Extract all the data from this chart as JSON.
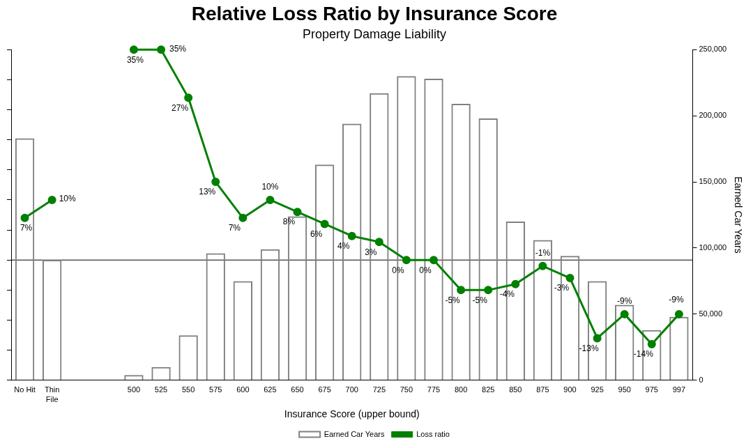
{
  "chart_data": {
    "type": "bar",
    "title": "Relative Loss Ratio by Insurance Score",
    "subtitle": "Property Damage Liability",
    "xlabel": "Insurance Score (upper bound)",
    "y2label": "Earned Car Years",
    "categories": [
      "No Hit",
      "Thin File",
      null,
      null,
      "500",
      "525",
      "550",
      "575",
      "600",
      "625",
      "650",
      "675",
      "700",
      "725",
      "750",
      "775",
      "800",
      "825",
      "850",
      "875",
      "900",
      "925",
      "950",
      "975",
      "997"
    ],
    "series": [
      {
        "name": "Earned Car Years",
        "axis": "y2",
        "color": "#808080",
        "values": [
          183000,
          91000,
          null,
          null,
          4000,
          10000,
          34000,
          96000,
          75000,
          99000,
          124000,
          163000,
          194000,
          217000,
          230000,
          228000,
          209000,
          198000,
          120000,
          106000,
          94000,
          75000,
          57000,
          38000,
          48000
        ]
      },
      {
        "name": "Loss ratio",
        "type": "line",
        "axis": "y",
        "color": "#008000",
        "values": [
          7,
          10,
          null,
          null,
          35,
          35,
          27,
          13,
          7,
          10,
          8,
          6,
          4,
          3,
          0,
          0,
          -5,
          -5,
          -4,
          -1,
          -3,
          -13,
          -9,
          -14,
          -9
        ],
        "value_labels": [
          "7%",
          "10%",
          null,
          null,
          "35%",
          "35%",
          "27%",
          "13%",
          "7%",
          "10%",
          "8%",
          "6%",
          "4%",
          "3%",
          "0%",
          "0%",
          "-5%",
          "-5%",
          "-4%",
          "-1%",
          "-3%",
          "-13%",
          "-9%",
          "-14%",
          "-9%"
        ]
      }
    ],
    "ylim": [
      -20,
      35
    ],
    "yticks": [
      {
        "value": -20,
        "label": null
      },
      {
        "value": -15,
        "label": null
      },
      {
        "value": -10,
        "label": null
      },
      {
        "value": -5,
        "label": null
      },
      {
        "value": 0,
        "label": null
      },
      {
        "value": 5,
        "label": null
      },
      {
        "value": 10,
        "label": null
      },
      {
        "value": 15,
        "label": null
      },
      {
        "value": 20,
        "label": null
      },
      {
        "value": 25,
        "label": null
      },
      {
        "value": 30,
        "label": null
      },
      {
        "value": 35,
        "label": null
      }
    ],
    "y2lim": [
      0,
      250000
    ],
    "y2ticks": [
      {
        "value": 0,
        "label": "0"
      },
      {
        "value": 50000,
        "label": "50,000"
      },
      {
        "value": 100000,
        "label": "100,000"
      },
      {
        "value": 150000,
        "label": "150,000"
      },
      {
        "value": 200000,
        "label": "200,000"
      },
      {
        "value": 250000,
        "label": "250,000"
      }
    ],
    "ref_lines": [
      {
        "axis": "y",
        "value": 0,
        "color": "#000000"
      }
    ],
    "grid": false,
    "legend": "bottom",
    "marker": "circle",
    "line_style": "solid"
  }
}
